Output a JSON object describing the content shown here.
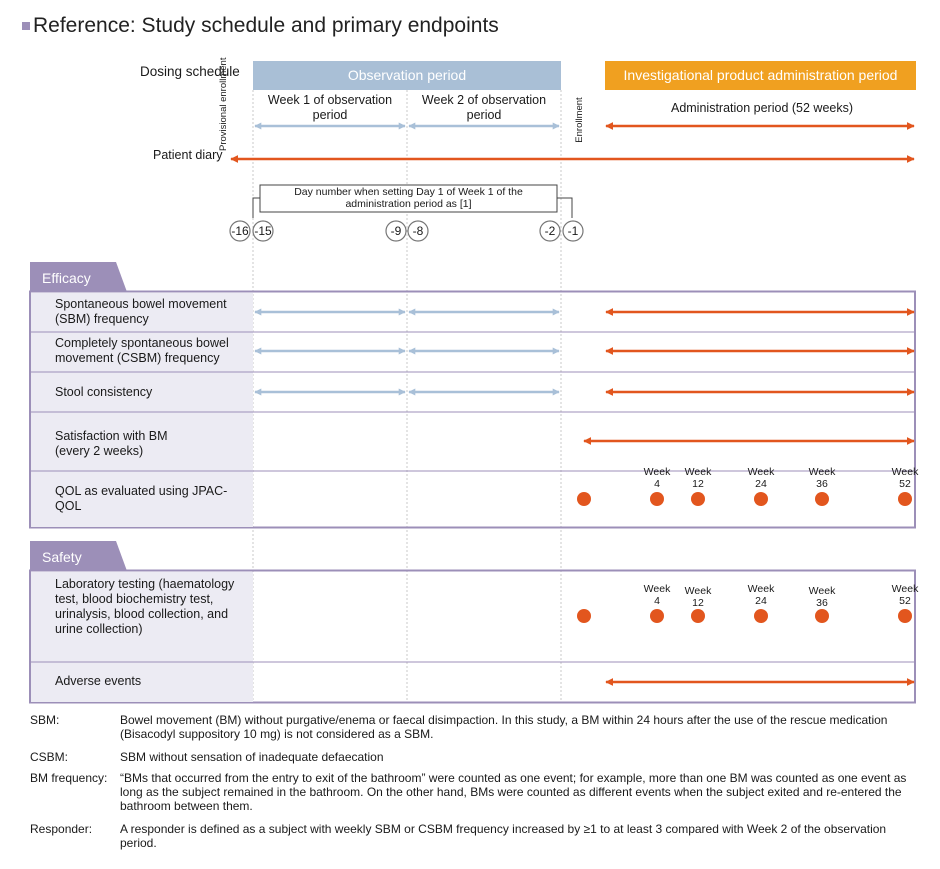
{
  "title": "Reference: Study schedule and primary endpoints",
  "schedule": {
    "dosing_label": "Dosing schedule",
    "observation_period": "Observation period",
    "administration_period_header": "Investigational product administration period",
    "provisional_enrollment": "Provisional enrollment",
    "enrollment": "Enrollment",
    "week1": "Week 1 of observation period",
    "week2": "Week 2 of observation period",
    "administration_period": "Administration period (52 weeks)",
    "patient_diary": "Patient diary",
    "day_number_note": "Day number when setting Day 1 of Week 1 of the administration period as [1]",
    "days": [
      "-16",
      "-15",
      "-9",
      "-8",
      "-2",
      "-1"
    ]
  },
  "efficacy": {
    "tab": "Efficacy",
    "rows": [
      "Spontaneous bowel movement (SBM) frequency",
      "Completely spontaneous bowel movement (CSBM) frequency",
      "Stool consistency",
      "Satisfaction with BM (every 2 weeks)",
      "QOL as evaluated using JPAC-QOL"
    ]
  },
  "safety": {
    "tab": "Safety",
    "rows": [
      "Laboratory testing (haematology test, blood biochemistry test, urinalysis, blood collection, and urine collection)",
      "Adverse events"
    ]
  },
  "weeks": {
    "word": "Week",
    "numbers": [
      "4",
      "12",
      "24",
      "36",
      "52"
    ]
  },
  "notes": [
    {
      "term": "SBM:",
      "definition": "Bowel movement (BM) without purgative/enema or faecal disimpaction. In this study, a BM within 24 hours after the use of the rescue medication (Bisacodyl suppository 10 mg) is not considered as a SBM."
    },
    {
      "term": "CSBM:",
      "definition": "SBM without sensation of inadequate defaecation"
    },
    {
      "term": "BM frequency:",
      "definition": "“BMs that occurred from the entry to exit of the bathroom” were counted as one event; for example, more than one BM was counted as one event as long as the subject remained in the bathroom. On the other hand, BMs were counted as different events when the subject exited and re-entered the bathroom between them."
    },
    {
      "term": "Responder:",
      "definition": "A responder is defined as a subject with weekly SBM or CSBM frequency increased by ≥1 to at least 3 compared with Week 2 of the observation period."
    }
  ],
  "colors": {
    "observation": "#a9bfd6",
    "observation_arrow": "#a9c0d8",
    "administration": "#f0a020",
    "orange": "#e2561e",
    "purple": "#9c8fb8",
    "label_bg": "#ecebf3"
  }
}
